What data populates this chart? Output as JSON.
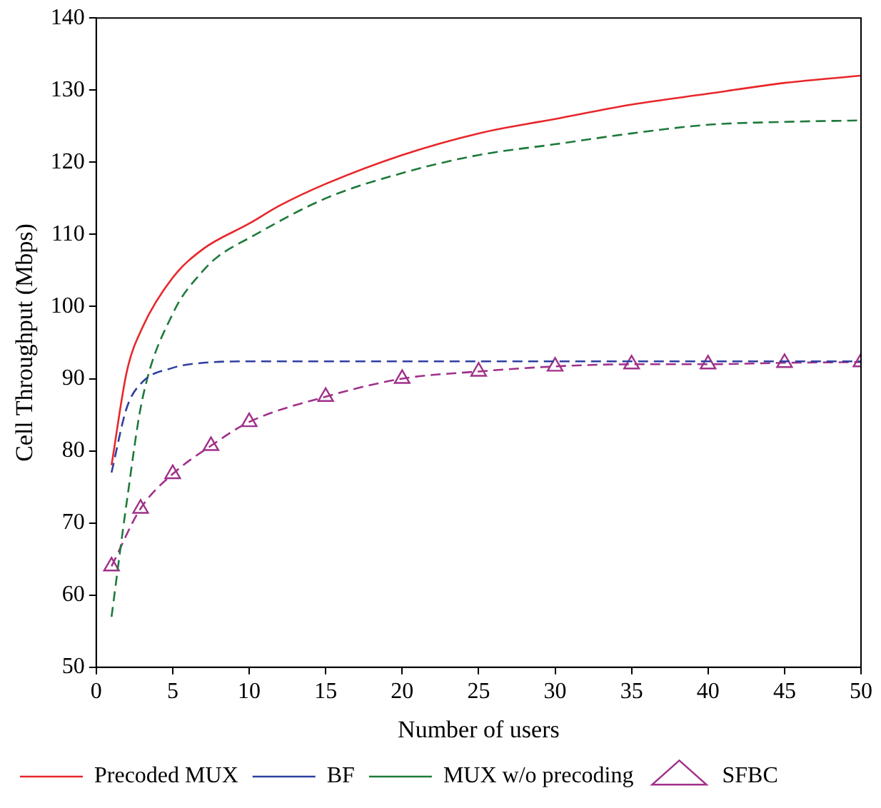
{
  "chart_data": {
    "type": "line",
    "xlabel": "Number of users",
    "ylabel": "Cell Throughput (Mbps)",
    "xlim": [
      0,
      50
    ],
    "xticks": [
      0,
      5,
      10,
      15,
      20,
      25,
      30,
      35,
      40,
      45,
      50
    ],
    "ylim": [
      50,
      140
    ],
    "yticks": [
      50,
      60,
      70,
      80,
      90,
      100,
      110,
      120,
      130,
      140
    ],
    "grid": false,
    "legend": "bottom",
    "series": [
      {
        "name": "Precoded MUX",
        "color": "#e8262a",
        "line_style": "solid",
        "marker": "none",
        "x": [
          1,
          2,
          3,
          5,
          7,
          10,
          12,
          15,
          20,
          25,
          30,
          35,
          40,
          45,
          50
        ],
        "values": [
          78,
          91,
          97,
          104,
          108,
          111.5,
          114,
          117,
          121,
          124,
          126,
          128,
          129.5,
          131,
          132
        ]
      },
      {
        "name": "BF",
        "color": "#2e3fa0",
        "line_style": "dashed",
        "marker": "none",
        "x": [
          1,
          2,
          3,
          5,
          7,
          10,
          15,
          20,
          25,
          30,
          35,
          40,
          45,
          50
        ],
        "values": [
          77,
          86,
          89.5,
          91.5,
          92.2,
          92.4,
          92.4,
          92.4,
          92.4,
          92.4,
          92.4,
          92.4,
          92.4,
          92.4
        ]
      },
      {
        "name": "MUX w/o precoding",
        "color": "#1d7a3a",
        "line_style": "dashed",
        "marker": "none",
        "x": [
          1,
          2,
          3,
          5,
          7,
          8,
          10,
          15,
          20,
          25,
          30,
          35,
          40,
          45,
          50
        ],
        "values": [
          57,
          73,
          87,
          99,
          105,
          107,
          109.5,
          115,
          118.5,
          121,
          122.5,
          124,
          125.2,
          125.6,
          125.8
        ]
      },
      {
        "name": "SFBC",
        "color": "#a0308a",
        "line_style": "dashed",
        "marker": "triangle",
        "x": [
          1,
          2.9,
          5,
          7.5,
          10,
          15,
          20,
          25,
          30,
          35,
          40,
          45,
          50
        ],
        "values": [
          64,
          72,
          76.8,
          80.7,
          84,
          87.5,
          90,
          91,
          91.7,
          92,
          92,
          92.2,
          92.3
        ]
      }
    ]
  }
}
